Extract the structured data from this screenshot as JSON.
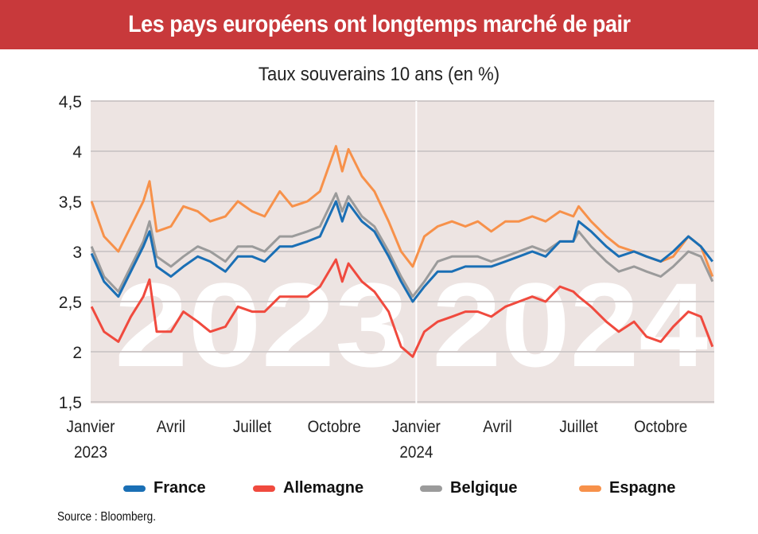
{
  "header": {
    "title": "Les pays européens ont longtemps marché de pair"
  },
  "chart_data": {
    "type": "line",
    "title": "Taux souverains 10 ans (en %)",
    "ylim": [
      1.5,
      4.5
    ],
    "yticks": [
      1.5,
      2,
      2.5,
      3,
      3.5,
      4,
      4.5
    ],
    "ytick_labels": [
      "1,5",
      "2",
      "2,5",
      "3",
      "3,5",
      "4",
      "4,5"
    ],
    "xlim": [
      "2023-01-01",
      "2024-11-30"
    ],
    "xticks": [
      {
        "date": "2023-01-01",
        "label": "Janvier",
        "year": "2023"
      },
      {
        "date": "2023-04-01",
        "label": "Avril",
        "year": ""
      },
      {
        "date": "2023-07-01",
        "label": "Juillet",
        "year": ""
      },
      {
        "date": "2023-10-01",
        "label": "Octobre",
        "year": ""
      },
      {
        "date": "2024-01-01",
        "label": "Janvier",
        "year": "2024"
      },
      {
        "date": "2024-04-01",
        "label": "Avril",
        "year": ""
      },
      {
        "date": "2024-07-01",
        "label": "Juillet",
        "year": ""
      },
      {
        "date": "2024-10-01",
        "label": "Octobre",
        "year": ""
      }
    ],
    "watermarks": [
      "2023",
      "2024"
    ],
    "grid": true,
    "legend_position": "bottom",
    "x": [
      "2023-01-02",
      "2023-01-16",
      "2023-02-01",
      "2023-02-15",
      "2023-03-01",
      "2023-03-08",
      "2023-03-16",
      "2023-04-01",
      "2023-04-15",
      "2023-05-01",
      "2023-05-15",
      "2023-06-01",
      "2023-06-15",
      "2023-07-01",
      "2023-07-15",
      "2023-08-01",
      "2023-08-15",
      "2023-09-01",
      "2023-09-15",
      "2023-10-03",
      "2023-10-10",
      "2023-10-17",
      "2023-11-01",
      "2023-11-15",
      "2023-12-01",
      "2023-12-15",
      "2023-12-28",
      "2024-01-10",
      "2024-01-25",
      "2024-02-10",
      "2024-02-25",
      "2024-03-10",
      "2024-03-25",
      "2024-04-10",
      "2024-04-25",
      "2024-05-10",
      "2024-05-25",
      "2024-06-10",
      "2024-06-25",
      "2024-07-01",
      "2024-07-15",
      "2024-08-01",
      "2024-08-15",
      "2024-09-01",
      "2024-09-15",
      "2024-10-01",
      "2024-10-15",
      "2024-11-01",
      "2024-11-15",
      "2024-11-28"
    ],
    "series": [
      {
        "name": "France",
        "color": "#1a6fb5",
        "values": [
          2.98,
          2.7,
          2.55,
          2.8,
          3.05,
          3.2,
          2.85,
          2.75,
          2.85,
          2.95,
          2.9,
          2.8,
          2.95,
          2.95,
          2.9,
          3.05,
          3.05,
          3.1,
          3.15,
          3.5,
          3.3,
          3.48,
          3.3,
          3.2,
          2.95,
          2.7,
          2.5,
          2.65,
          2.8,
          2.8,
          2.85,
          2.85,
          2.85,
          2.9,
          2.95,
          3.0,
          2.95,
          3.1,
          3.1,
          3.3,
          3.2,
          3.05,
          2.95,
          3.0,
          2.95,
          2.9,
          3.0,
          3.15,
          3.05,
          2.9
        ]
      },
      {
        "name": "Allemagne",
        "color": "#f04a3e",
        "values": [
          2.45,
          2.2,
          2.1,
          2.35,
          2.55,
          2.72,
          2.2,
          2.2,
          2.4,
          2.3,
          2.2,
          2.25,
          2.45,
          2.4,
          2.4,
          2.55,
          2.55,
          2.55,
          2.65,
          2.92,
          2.7,
          2.88,
          2.7,
          2.6,
          2.4,
          2.05,
          1.95,
          2.2,
          2.3,
          2.35,
          2.4,
          2.4,
          2.35,
          2.45,
          2.5,
          2.55,
          2.5,
          2.65,
          2.6,
          2.55,
          2.45,
          2.3,
          2.2,
          2.3,
          2.15,
          2.1,
          2.25,
          2.4,
          2.35,
          2.05
        ]
      },
      {
        "name": "Belgique",
        "color": "#9b9b9b",
        "values": [
          3.05,
          2.75,
          2.6,
          2.85,
          3.1,
          3.3,
          2.95,
          2.85,
          2.95,
          3.05,
          3.0,
          2.9,
          3.05,
          3.05,
          3.0,
          3.15,
          3.15,
          3.2,
          3.25,
          3.58,
          3.4,
          3.55,
          3.35,
          3.25,
          3.0,
          2.75,
          2.55,
          2.7,
          2.9,
          2.95,
          2.95,
          2.95,
          2.9,
          2.95,
          3.0,
          3.05,
          3.0,
          3.1,
          3.1,
          3.2,
          3.05,
          2.9,
          2.8,
          2.85,
          2.8,
          2.75,
          2.85,
          3.0,
          2.95,
          2.7
        ]
      },
      {
        "name": "Espagne",
        "color": "#f7914a",
        "values": [
          3.5,
          3.15,
          3.0,
          3.25,
          3.5,
          3.7,
          3.2,
          3.25,
          3.45,
          3.4,
          3.3,
          3.35,
          3.5,
          3.4,
          3.35,
          3.6,
          3.45,
          3.5,
          3.6,
          4.05,
          3.8,
          4.02,
          3.75,
          3.6,
          3.3,
          3.0,
          2.85,
          3.15,
          3.25,
          3.3,
          3.25,
          3.3,
          3.2,
          3.3,
          3.3,
          3.35,
          3.3,
          3.4,
          3.35,
          3.45,
          3.3,
          3.15,
          3.05,
          3.0,
          2.95,
          2.9,
          2.95,
          3.15,
          3.05,
          2.75
        ]
      }
    ],
    "source": "Source : Bloomberg.",
    "colors": {
      "header_bg": "#c8393b",
      "plot_bg": "#ede4e2"
    }
  }
}
